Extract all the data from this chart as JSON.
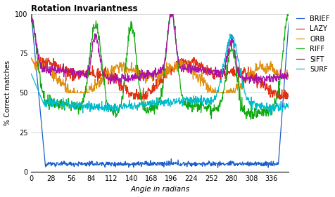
{
  "title": "Rotation Invariantness",
  "xlabel": "Angle in radians",
  "ylabel": "% Correct matches",
  "xlim": [
    0,
    360
  ],
  "ylim": [
    0,
    100
  ],
  "xticks": [
    0,
    28,
    56,
    84,
    112,
    140,
    168,
    196,
    224,
    252,
    280,
    308,
    336
  ],
  "yticks": [
    0,
    25,
    50,
    75,
    100
  ],
  "colors": {
    "BRIEF": "#1a5fcc",
    "LAZY": "#e03010",
    "ORB": "#e09010",
    "RIFF": "#10aa10",
    "SIFT": "#aa10aa",
    "SURF": "#00bbcc"
  },
  "linewidth": 0.9,
  "background_color": "#ffffff",
  "grid_color": "#cccccc"
}
